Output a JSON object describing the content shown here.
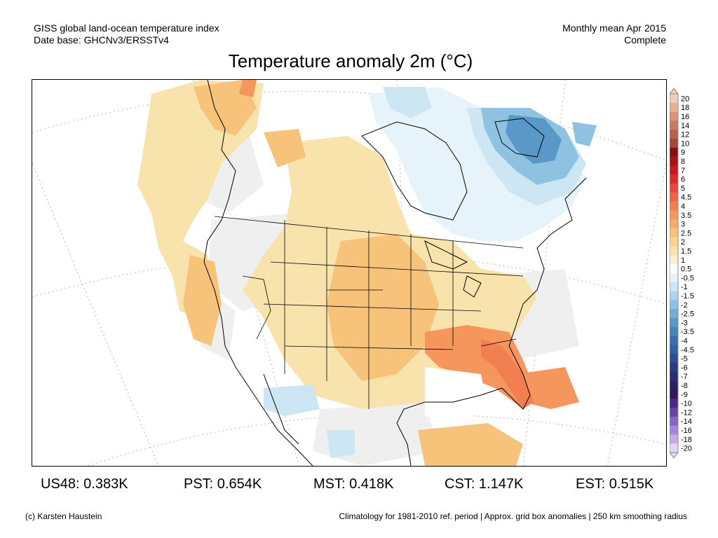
{
  "header": {
    "left_line1": "GISS global land-ocean temperature index",
    "left_line2": "Date base: GHCNv3/ERSSTv4",
    "right_line1": "Monthly mean Apr 2015",
    "right_line2": "Complete"
  },
  "title": "Temperature anomaly 2m (°C)",
  "colorbar": {
    "labels": [
      "20",
      "18",
      "16",
      "14",
      "12",
      "10",
      "9",
      "8",
      "7",
      "6",
      "5",
      "4.5",
      "4",
      "3.5",
      "3",
      "2.5",
      "2",
      "1.5",
      "1",
      "0.5",
      "-0.5",
      "-1",
      "-1.5",
      "-2",
      "-2.5",
      "-3",
      "-3.5",
      "-4",
      "-4.5",
      "-5",
      "-6",
      "-7",
      "-8",
      "-9",
      "-10",
      "-12",
      "-14",
      "-16",
      "-18",
      "-20"
    ],
    "colors": [
      "#f4cdb6",
      "#eab092",
      "#dd9277",
      "#cc7a62",
      "#b8614f",
      "#a04a3c",
      "#8b0d10",
      "#a81414",
      "#c41c1c",
      "#da2c2c",
      "#e6493b",
      "#ee6447",
      "#f27f52",
      "#f5965c",
      "#f6ad68",
      "#f7c27a",
      "#f8d48f",
      "#f9e3ac",
      "#faf0cc",
      "#ffffff",
      "#e6f3fa",
      "#cde6f3",
      "#add5eb",
      "#8fc2e0",
      "#71add4",
      "#5a98c8",
      "#4983bb",
      "#3c6fad",
      "#335e9f",
      "#2c4d90",
      "#283d80",
      "#282f72",
      "#2a2166",
      "#33175e",
      "#4a2b82",
      "#6845a5",
      "#8865c4",
      "#a787dc",
      "#c6acec",
      "#e2d6f8"
    ]
  },
  "stats": [
    {
      "label": "US48: 0.383K"
    },
    {
      "label": "PST: 0.654K"
    },
    {
      "label": "MST: 0.418K"
    },
    {
      "label": "CST: 1.147K"
    },
    {
      "label": "EST: 0.515K"
    }
  ],
  "footer": {
    "left": "(c) Karsten Haustein",
    "right": "Climatology for 1981-2010 ref. period | Approx. grid box anomalies | 250 km smoothing radius"
  },
  "colors": {
    "warm_light": "#f9e3ac",
    "warm_mid": "#f7c27a",
    "warm_strong": "#f5965c",
    "warm_deep": "#f27f52",
    "cool_light": "#cde6f3",
    "cool_mid": "#8fc2e0",
    "cool_deep": "#5a98c8",
    "no_data": "#efefef"
  }
}
